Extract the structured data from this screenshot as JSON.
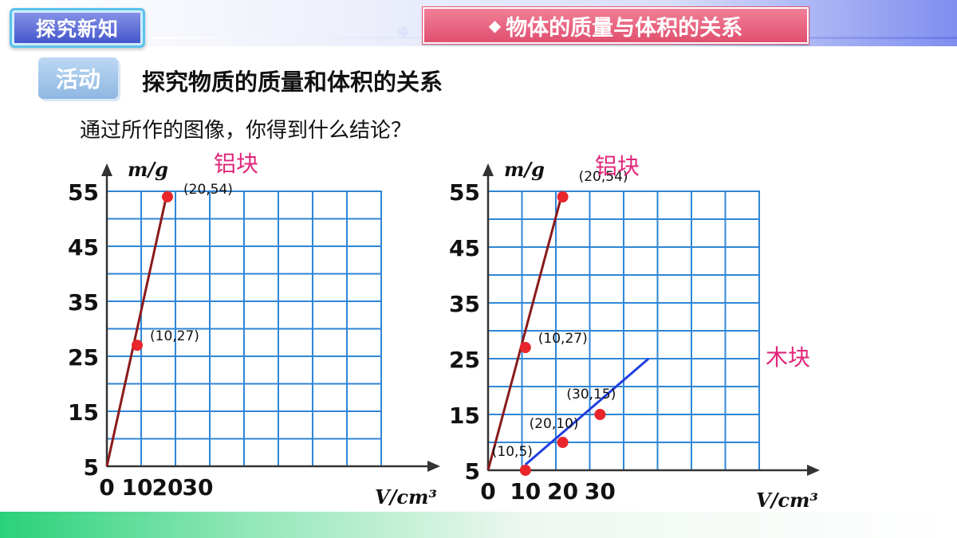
{
  "header": {
    "section_label": "探究新知",
    "topic_title": "物体的质量与体积的关系",
    "topic_icon": "diamond-icon"
  },
  "activity": {
    "badge": "活动",
    "title": "探究物质的质量和体积的关系"
  },
  "question": "通过所作的图像，你得到什么结论？",
  "chart_data": [
    {
      "type": "line",
      "title": "",
      "xlabel": "V/cm³",
      "ylabel": "m/g",
      "x_ticks": [
        0,
        10,
        20,
        30
      ],
      "y_ticks": [
        5,
        15,
        25,
        35,
        45,
        55
      ],
      "xlim": [
        0,
        50
      ],
      "ylim": [
        5,
        55
      ],
      "grid": true,
      "series": [
        {
          "name": "铝块",
          "color": "#8b1a1a",
          "line": [
            [
              0,
              5
            ],
            [
              20,
              55
            ]
          ],
          "points": [
            {
              "x": 10,
              "y": 27,
              "label": "(10,27)"
            },
            {
              "x": 20,
              "y": 54,
              "label": "(20,54)"
            }
          ]
        }
      ]
    },
    {
      "type": "line",
      "title": "",
      "xlabel": "V/cm³",
      "ylabel": "m/g",
      "x_ticks": [
        0,
        10,
        20,
        30
      ],
      "y_ticks": [
        5,
        15,
        25,
        35,
        45,
        55
      ],
      "xlim": [
        0,
        50
      ],
      "ylim": [
        5,
        55
      ],
      "grid": true,
      "series": [
        {
          "name": "铝块",
          "color": "#8b1a1a",
          "line": [
            [
              0,
              5
            ],
            [
              20,
              55
            ]
          ],
          "points": [
            {
              "x": 10,
              "y": 27,
              "label": "(10,27)"
            },
            {
              "x": 20,
              "y": 54,
              "label": "(20,54)"
            }
          ]
        },
        {
          "name": "木块",
          "color": "#1f3fe0",
          "line": [
            [
              10,
              6
            ],
            [
              43,
              25
            ]
          ],
          "points": [
            {
              "x": 10,
              "y": 5,
              "label": "(10,5)"
            },
            {
              "x": 20,
              "y": 10,
              "label": "(20,10)"
            },
            {
              "x": 30,
              "y": 15,
              "label": "(30,15)"
            }
          ]
        }
      ]
    }
  ]
}
